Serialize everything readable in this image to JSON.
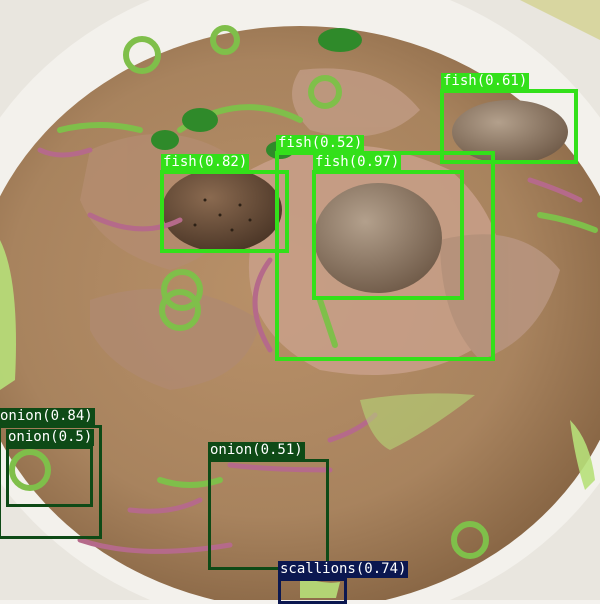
{
  "image": {
    "subject": "bowl-of-pho",
    "colors": {
      "bowl_rim": "#f3f1ec",
      "broth": "#a8835e",
      "broth_dark": "#7b5a3a",
      "beef_slice": "#c9a08a",
      "meatball": "#8f7a66",
      "scallion": "#7fbf4a",
      "red_onion": "#b56a8a"
    }
  },
  "detections": [
    {
      "label": "fish(0.61)",
      "color": "#33e01a"
    },
    {
      "label": "fish(0.82)",
      "color": "#33e01a"
    },
    {
      "label": "fish(0.52)",
      "color": "#33e01a"
    },
    {
      "label": "fish(0.97)",
      "color": "#33e01a"
    },
    {
      "label": "onion(0.84)",
      "color": "#0e4a16"
    },
    {
      "label": "onion(0.5)",
      "color": "#0e4a16"
    },
    {
      "label": "onion(0.51)",
      "color": "#0e4a16"
    },
    {
      "label": "scallions(0.74)",
      "color": "#0b1750"
    }
  ]
}
